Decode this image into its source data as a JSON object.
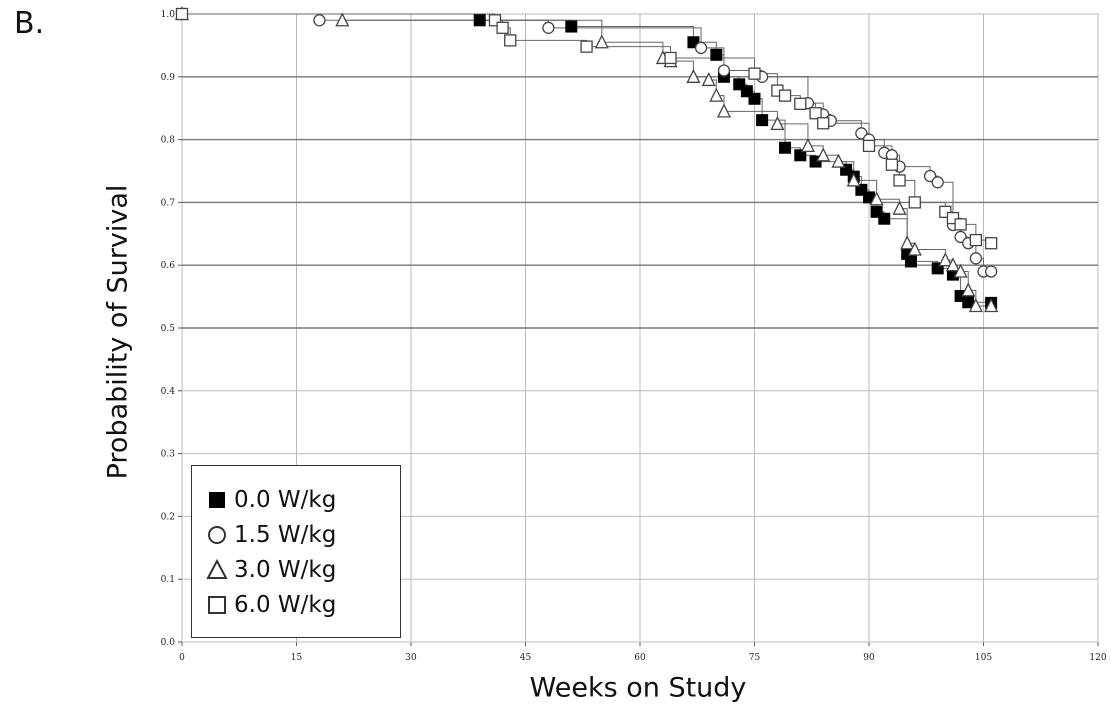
{
  "panel_label": "B.",
  "chart_data": {
    "type": "line",
    "subtype": "kaplan-meier",
    "title": "",
    "xlabel": "Weeks on Study",
    "ylabel": "Probability of Survival",
    "xlim": [
      0,
      120
    ],
    "ylim": [
      0.0,
      1.0
    ],
    "x_ticks": [
      "0",
      "15",
      "30",
      "45",
      "60",
      "75",
      "90",
      "105",
      "120"
    ],
    "y_ticks": [
      "0.0",
      "0.1",
      "0.2",
      "0.3",
      "0.4",
      "0.5",
      "0.6",
      "0.7",
      "0.8",
      "0.9",
      "1.0"
    ],
    "grid": true,
    "legend_position": "bottom-left",
    "series": [
      {
        "name": "0.0 W/kg",
        "marker": "filled-square",
        "x": [
          0,
          39,
          51,
          67,
          70,
          71,
          73,
          74,
          75,
          76,
          79,
          81,
          83,
          87,
          88,
          89,
          90,
          91,
          92,
          95,
          95.5,
          99,
          101,
          102,
          103,
          106
        ],
        "y": [
          1.0,
          0.99,
          0.98,
          0.955,
          0.935,
          0.9,
          0.888,
          0.877,
          0.865,
          0.831,
          0.787,
          0.775,
          0.765,
          0.752,
          0.741,
          0.72,
          0.708,
          0.685,
          0.674,
          0.618,
          0.606,
          0.595,
          0.585,
          0.551,
          0.541,
          0.54
        ]
      },
      {
        "name": "1.5 W/kg",
        "marker": "open-circle",
        "x": [
          0,
          18,
          48,
          68,
          71,
          76,
          82,
          84,
          85,
          89,
          90,
          92,
          93,
          94,
          98,
          99,
          101,
          102,
          103,
          104,
          105,
          106
        ],
        "y": [
          1.0,
          0.99,
          0.978,
          0.946,
          0.91,
          0.9,
          0.858,
          0.84,
          0.83,
          0.81,
          0.8,
          0.779,
          0.775,
          0.757,
          0.742,
          0.732,
          0.664,
          0.645,
          0.635,
          0.611,
          0.59,
          0.59
        ]
      },
      {
        "name": "3.0 W/kg",
        "marker": "open-triangle",
        "x": [
          0,
          21,
          55,
          63,
          64,
          67,
          69,
          70,
          71,
          78,
          82,
          84,
          86,
          88,
          91,
          94,
          95,
          96,
          100,
          101,
          102,
          103,
          104,
          106
        ],
        "y": [
          1.0,
          0.99,
          0.955,
          0.93,
          0.925,
          0.9,
          0.895,
          0.87,
          0.845,
          0.825,
          0.79,
          0.775,
          0.765,
          0.735,
          0.705,
          0.69,
          0.635,
          0.625,
          0.608,
          0.6,
          0.59,
          0.56,
          0.535,
          0.535
        ]
      },
      {
        "name": "6.0 W/kg",
        "marker": "open-square",
        "x": [
          0,
          41,
          42,
          43,
          53,
          64,
          75,
          78,
          79,
          81,
          83,
          84,
          90,
          93,
          94,
          96,
          100,
          101,
          102,
          104,
          106
        ],
        "y": [
          1.0,
          0.99,
          0.978,
          0.958,
          0.948,
          0.93,
          0.905,
          0.878,
          0.87,
          0.857,
          0.842,
          0.826,
          0.79,
          0.76,
          0.735,
          0.7,
          0.685,
          0.675,
          0.665,
          0.64,
          0.635
        ]
      }
    ]
  }
}
